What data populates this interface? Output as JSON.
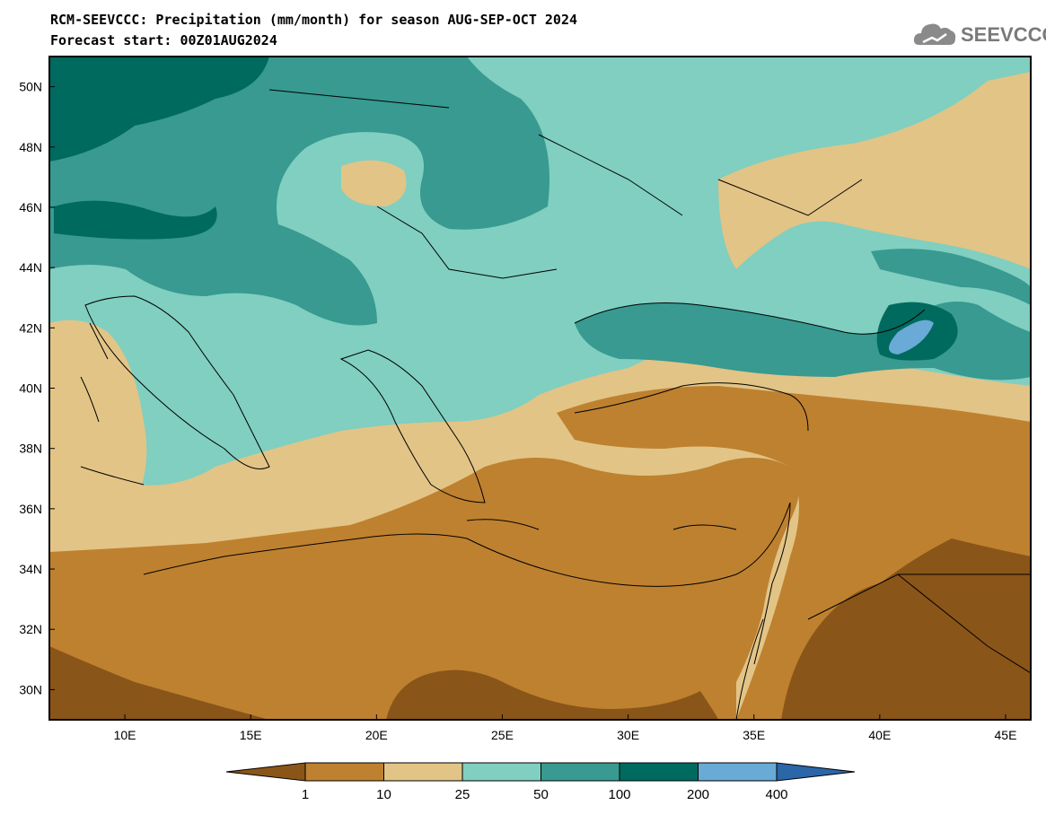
{
  "header": {
    "title_line1": "RCM-SEEVCCC: Precipitation (mm/month) for season AUG-SEP-OCT 2024",
    "title_line2": "Forecast start: 00Z01AUG2024"
  },
  "logo": {
    "text": "SEEVCCC",
    "icon": "cloud-icon"
  },
  "map": {
    "lon_range": [
      7,
      46
    ],
    "lat_range": [
      29,
      51
    ],
    "lat_ticks": [
      "50N",
      "48N",
      "46N",
      "44N",
      "42N",
      "40N",
      "38N",
      "36N",
      "34N",
      "32N",
      "30N"
    ],
    "lon_ticks": [
      "10E",
      "15E",
      "20E",
      "25E",
      "30E",
      "35E",
      "40E",
      "45E"
    ]
  },
  "legend": {
    "labels": [
      "1",
      "10",
      "25",
      "50",
      "100",
      "200",
      "400"
    ],
    "colors": [
      "#8a5518",
      "#be8130",
      "#e2c486",
      "#80cfc0",
      "#389a90",
      "#006a5e",
      "#6aaad6",
      "#2a66a8"
    ]
  },
  "colors": {
    "very_dry": "#8a5518",
    "dry": "#be8130",
    "moderate": "#e2c486",
    "wet": "#80cfc0",
    "very_wet": "#389a90",
    "extreme": "#006a5e",
    "heavy": "#6aaad6"
  }
}
